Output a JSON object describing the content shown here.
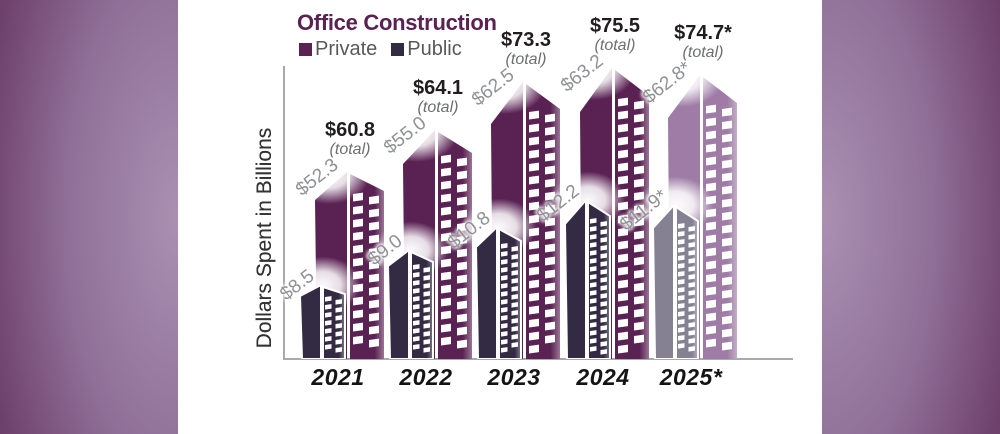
{
  "frame": {
    "dark_color": "#5a2553",
    "light_color": "#ab90b2",
    "panel_color": "#ffffff"
  },
  "chart_data": {
    "type": "bar",
    "title": "Office Construction",
    "title_color": "#5a2153",
    "ylabel": "Dollars Spent in Billions",
    "categories": [
      "2021",
      "2022",
      "2023",
      "2024",
      "2025*"
    ],
    "series": [
      {
        "name": "Private",
        "values": [
          52.3,
          55.0,
          62.5,
          63.2,
          62.8
        ],
        "labels": [
          "$52.3",
          "$55.0",
          "$62.5",
          "$63.2",
          "$62.8*"
        ],
        "color": "#5a2153",
        "projected_color": "#9e7ca5"
      },
      {
        "name": "Public",
        "values": [
          8.5,
          9.0,
          10.8,
          12.2,
          11.9
        ],
        "labels": [
          "$8.5",
          "$9.0",
          "$10.8",
          "$12.2",
          "$11.9*"
        ],
        "color": "#332b44",
        "projected_color": "#858193"
      }
    ],
    "totals": [
      60.8,
      64.1,
      73.3,
      75.5,
      74.7
    ],
    "total_labels": [
      "$60.8",
      "$64.1",
      "$73.3",
      "$75.5",
      "$74.7*"
    ],
    "total_sub": "(total)",
    "legend_position": "top-left",
    "grid": false,
    "notes": "Asterisk values for 2025 are projections, drawn in faded colors"
  }
}
